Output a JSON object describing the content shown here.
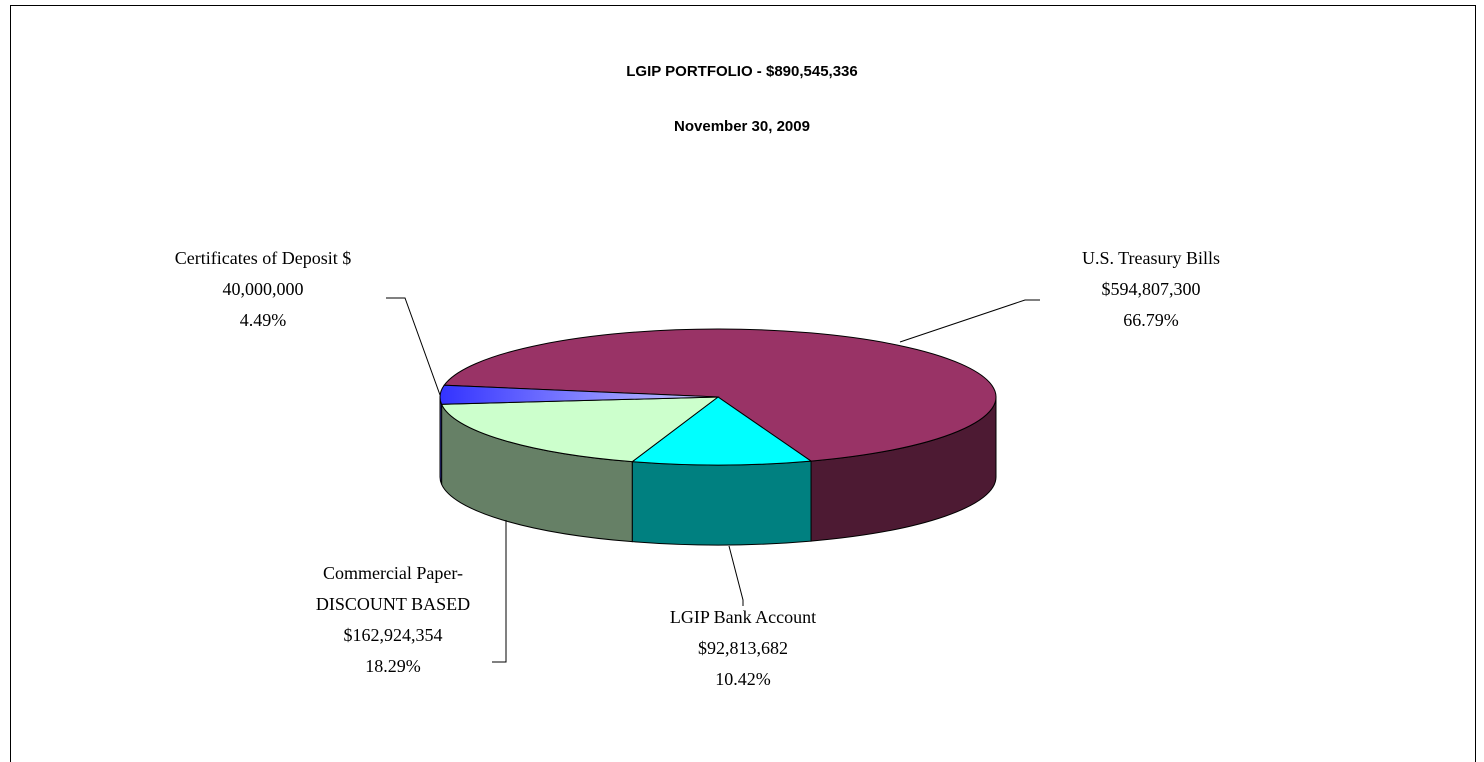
{
  "chart_data": {
    "type": "pie3d",
    "title": "LGIP PORTFOLIO - $890,545,336",
    "subtitle": "November 30, 2009",
    "categories": [
      "U.S. Treasury Bills",
      "LGIP Bank Account",
      "Commercial Paper-DISCOUNT BASED",
      "Certificates of Deposit $"
    ],
    "values": [
      594807300,
      92813682,
      162924354,
      40000000
    ],
    "value_labels": [
      "$594,807,300",
      "$92,813,682",
      "$162,924,354",
      "40,000,000"
    ],
    "percent_labels": [
      "66.79%",
      "10.42%",
      "18.29%",
      "4.49%"
    ],
    "colors": [
      "#993366",
      "#00ffff",
      "#ccffcc",
      "#6666ff"
    ],
    "side_colors": [
      "#4d1a33",
      "#008080",
      "#668066",
      "#3333aa"
    ]
  }
}
